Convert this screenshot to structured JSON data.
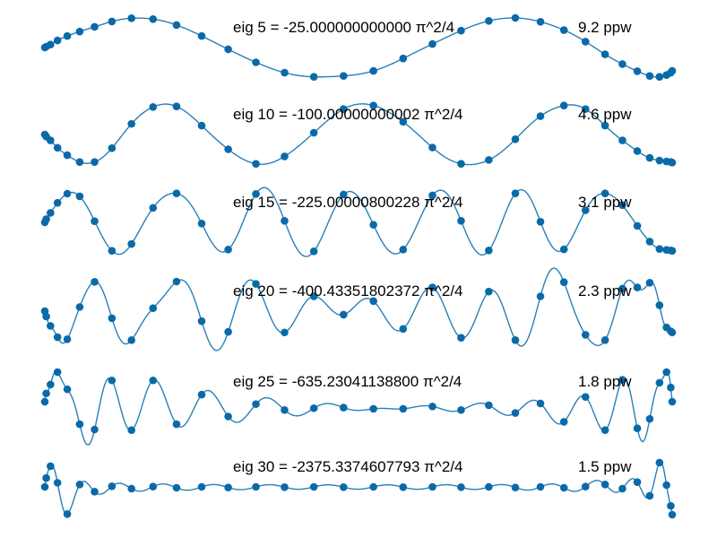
{
  "figure": {
    "colors": {
      "line": "#2a7fb8",
      "marker": "#0a6aa8",
      "background": "#ffffff",
      "text": "#000000"
    }
  },
  "chart_data": [
    {
      "type": "line",
      "eig_label": "eig 5 = -25.000000000000 π^2/4",
      "ppw_label": "9.2 ppw",
      "mode": 5,
      "x": [
        -1.0,
        -0.9955,
        -0.9819,
        -0.9595,
        -0.9284,
        -0.8888,
        -0.8413,
        -0.7861,
        -0.7237,
        -0.6549,
        -0.5801,
        -0.5,
        -0.4154,
        -0.327,
        -0.2357,
        -0.1423,
        -0.0476,
        0.0476,
        0.1423,
        0.2357,
        0.327,
        0.4154,
        0.5,
        0.5801,
        0.6549,
        0.7237,
        0.7861,
        0.8413,
        0.8888,
        0.9284,
        0.9595,
        0.9819,
        0.9955,
        1.0
      ],
      "y": [
        0.0,
        0.03,
        0.1,
        0.24,
        0.39,
        0.54,
        0.7,
        0.88,
        0.99,
        0.96,
        0.76,
        0.39,
        -0.06,
        -0.5,
        -0.85,
        -0.99,
        -0.96,
        -0.79,
        -0.37,
        0.12,
        0.57,
        0.9,
        1.0,
        0.87,
        0.59,
        0.2,
        -0.23,
        -0.56,
        -0.8,
        -0.96,
        -0.99,
        -0.93,
        -0.85,
        -0.79
      ]
    },
    {
      "type": "line",
      "eig_label": "eig 10 = -100.00000000002 π^2/4",
      "ppw_label": "4.6 ppw",
      "mode": 10,
      "x": [
        -1.0,
        -0.9955,
        -0.9819,
        -0.9595,
        -0.9284,
        -0.8888,
        -0.8413,
        -0.7861,
        -0.7237,
        -0.6549,
        -0.5801,
        -0.5,
        -0.4154,
        -0.327,
        -0.2357,
        -0.1423,
        -0.0476,
        0.0476,
        0.1423,
        0.2357,
        0.327,
        0.4154,
        0.5,
        0.5801,
        0.6549,
        0.7237,
        0.7861,
        0.8413,
        0.8888,
        0.9284,
        0.9595,
        0.9819,
        0.9955,
        1.0
      ],
      "y": [
        0.0,
        -0.07,
        -0.2,
        -0.45,
        -0.7,
        -0.93,
        -0.93,
        -0.46,
        0.36,
        0.93,
        0.95,
        0.3,
        -0.5,
        -0.99,
        -0.74,
        0.06,
        0.86,
        0.98,
        0.43,
        -0.44,
        -0.99,
        -0.86,
        -0.16,
        0.62,
        0.98,
        0.86,
        0.3,
        -0.2,
        -0.56,
        -0.79,
        -0.88,
        -0.91,
        -0.93,
        -0.95
      ]
    },
    {
      "type": "line",
      "eig_label": "eig 15 = -225.00000800228 π^2/4",
      "ppw_label": "3.1 ppw",
      "mode": 15,
      "x": [
        -1.0,
        -0.9955,
        -0.9819,
        -0.9595,
        -0.9284,
        -0.8888,
        -0.8413,
        -0.7861,
        -0.7237,
        -0.6549,
        -0.5801,
        -0.5,
        -0.4154,
        -0.327,
        -0.2357,
        -0.1423,
        -0.0476,
        0.0476,
        0.1423,
        0.2357,
        0.327,
        0.4154,
        0.5,
        0.5801,
        0.6549,
        0.7237,
        0.7861,
        0.8413,
        0.8888,
        0.9284,
        0.9595,
        0.9819,
        0.9955,
        1.0
      ],
      "y": [
        0.0,
        0.11,
        0.32,
        0.66,
        0.97,
        0.88,
        0.04,
        -0.96,
        -0.73,
        0.49,
        0.98,
        -0.04,
        -0.92,
        0.96,
        0.05,
        -0.98,
        0.94,
        -0.08,
        -0.92,
        0.91,
        0.05,
        -0.95,
        0.98,
        0.02,
        -0.91,
        0.41,
        0.98,
        0.58,
        -0.12,
        -0.65,
        -0.9,
        -0.93,
        -0.95,
        -0.96
      ]
    },
    {
      "type": "line",
      "eig_label": "eig 20 = -400.43351802372 π^2/4",
      "ppw_label": "2.3 ppw",
      "mode": 20,
      "x": [
        -1.0,
        -0.9955,
        -0.9819,
        -0.9595,
        -0.9284,
        -0.8888,
        -0.8413,
        -0.7861,
        -0.7237,
        -0.6549,
        -0.5801,
        -0.5,
        -0.4154,
        -0.327,
        -0.2357,
        -0.1423,
        -0.0476,
        0.0476,
        0.1423,
        0.2357,
        0.327,
        0.4154,
        0.5,
        0.5801,
        0.6549,
        0.7237,
        0.7861,
        0.8413,
        0.8888,
        0.9284,
        0.9595,
        0.9819,
        0.9955,
        1.0
      ],
      "y": [
        0.0,
        -0.18,
        -0.5,
        -0.88,
        -0.95,
        0.14,
        0.99,
        -0.24,
        -0.98,
        0.1,
        1.0,
        -0.34,
        -0.7,
        0.92,
        -0.72,
        0.5,
        -0.12,
        0.34,
        -0.6,
        0.8,
        -0.9,
        0.66,
        -0.98,
        0.5,
        0.98,
        -0.8,
        -0.98,
        0.76,
        0.8,
        0.96,
        0.2,
        -0.55,
        -0.68,
        -0.72
      ]
    },
    {
      "type": "line",
      "eig_label": "eig 25 = -635.23041138800 π^2/4",
      "ppw_label": "1.8 ppw",
      "mode": 25,
      "x": [
        -1.0,
        -0.9955,
        -0.9819,
        -0.9595,
        -0.9284,
        -0.8888,
        -0.8413,
        -0.7861,
        -0.7237,
        -0.6549,
        -0.5801,
        -0.5,
        -0.4154,
        -0.327,
        -0.2357,
        -0.1423,
        -0.0476,
        0.0476,
        0.1423,
        0.2357,
        0.327,
        0.4154,
        0.5,
        0.5801,
        0.6549,
        0.7237,
        0.7861,
        0.8413,
        0.8888,
        0.9284,
        0.9595,
        0.9819,
        0.9955,
        1.0
      ],
      "y": [
        0.0,
        0.28,
        0.58,
        1.0,
        0.42,
        -0.76,
        -0.94,
        0.72,
        -0.96,
        0.72,
        -0.76,
        0.24,
        -0.5,
        -0.08,
        -0.28,
        -0.22,
        -0.2,
        -0.24,
        -0.24,
        -0.16,
        -0.28,
        -0.12,
        -0.38,
        -0.06,
        -0.68,
        0.16,
        -0.96,
        0.74,
        -0.9,
        -0.58,
        0.64,
        1.0,
        0.48,
        0.0
      ]
    },
    {
      "type": "line",
      "eig_label": "eig 30 = -2375.3374607793 π^2/4",
      "ppw_label": "1.5 ppw",
      "mode": 30,
      "x": [
        -1.0,
        -0.9955,
        -0.9819,
        -0.9595,
        -0.9284,
        -0.8888,
        -0.8413,
        -0.7861,
        -0.7237,
        -0.6549,
        -0.5801,
        -0.5,
        -0.4154,
        -0.327,
        -0.2357,
        -0.1423,
        -0.0476,
        0.0476,
        0.1423,
        0.2357,
        0.327,
        0.4154,
        0.5,
        0.5801,
        0.6549,
        0.7237,
        0.7861,
        0.8413,
        0.8888,
        0.9284,
        0.9595,
        0.9819,
        0.9955,
        1.0
      ],
      "y": [
        0.0,
        0.3,
        0.7,
        0.14,
        -0.92,
        0.08,
        -0.16,
        0.02,
        -0.06,
        0.01,
        -0.03,
        0.0,
        -0.02,
        0.0,
        -0.01,
        0.0,
        -0.01,
        0.0,
        -0.01,
        0.0,
        -0.01,
        0.0,
        -0.02,
        0.0,
        -0.03,
        0.01,
        0.08,
        -0.06,
        0.16,
        -0.3,
        0.82,
        0.06,
        -0.64,
        -0.94
      ]
    }
  ]
}
